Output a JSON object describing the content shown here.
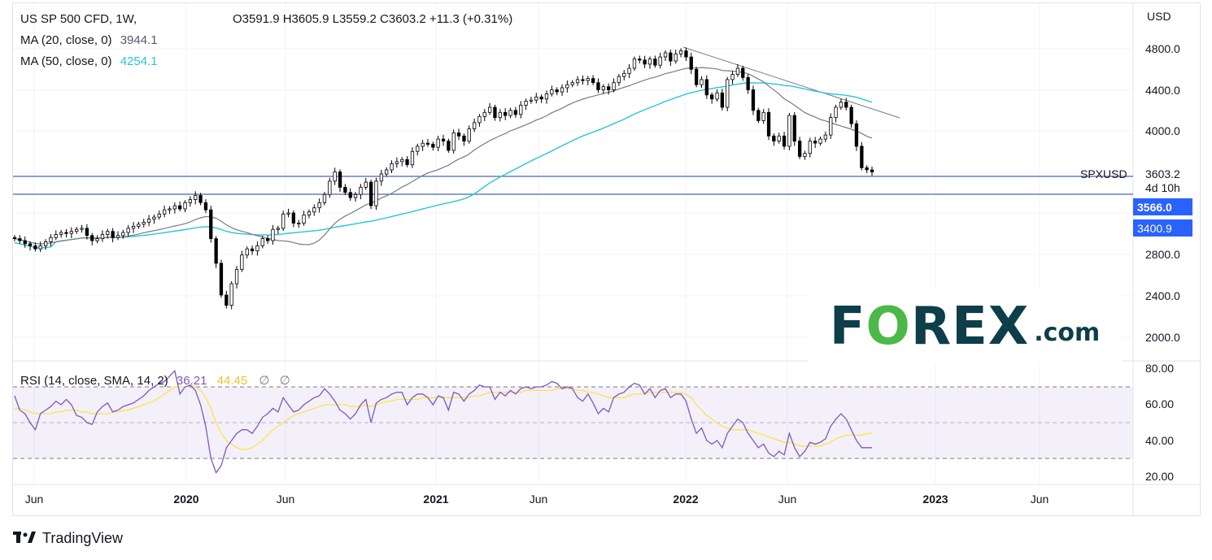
{
  "legend": {
    "symbol_line": "US SP 500 CFD, 1W,",
    "ohlc": {
      "open": "O3591.9",
      "high": "H3605.9",
      "low": "L3559.2",
      "close": "C3603.2",
      "change": "+11.3 (+0.31%)"
    },
    "ma20_label": "MA (20, close, 0)",
    "ma20_value": "3944.1",
    "ma50_label": "MA (50, close, 0)",
    "ma50_value": "4254.1"
  },
  "rsi_legend": {
    "label": "RSI (14, close, SMA, 14, 2)",
    "rsi_value": "36.21",
    "sma_value": "44.45",
    "extra1": "∅",
    "extra2": "∅"
  },
  "axis": {
    "currency": "USD",
    "price_ticks": [
      "4800.0",
      "4400.0",
      "4000.0",
      "2800.0",
      "2400.0",
      "2000.0"
    ],
    "rsi_ticks": [
      "80.00",
      "60.00",
      "40.00",
      "20.00"
    ],
    "time_ticks": [
      "Jun",
      "2020",
      "Jun",
      "2021",
      "Jun",
      "2022",
      "Jun",
      "2023",
      "Jun"
    ]
  },
  "tags": {
    "symbol": "SPXUSD",
    "last_price": "3603.2",
    "countdown": "4d 10h",
    "level1": "3566.0",
    "level2": "3400.9"
  },
  "branding": {
    "watermark_main_a": "F",
    "watermark_main_b": "REX",
    "watermark_o": "O",
    "watermark_suffix": ".com",
    "footer": "TradingView"
  },
  "colors": {
    "up": "#ffffff",
    "down": "#000000",
    "ma20": "#787b86",
    "ma50": "#26c6da",
    "rsi": "#7e57c2",
    "rsi_sma": "#fbe34c",
    "tag_blue": "#2962ff",
    "line_blue": "#1e3f95"
  },
  "chart_data": {
    "type": "candlestick",
    "timeframe": "1W",
    "price_range": [
      1850,
      5000
    ],
    "rsi_range": [
      15,
      85
    ],
    "horizontal_levels": [
      3603.2,
      3566.0
    ],
    "weekly_close": [
      2950,
      2930,
      2900,
      2880,
      2850,
      2880,
      2920,
      2960,
      2990,
      3010,
      3000,
      3020,
      3040,
      3050,
      2980,
      2930,
      2950,
      2990,
      3020,
      2960,
      2980,
      3010,
      3050,
      3070,
      3090,
      3110,
      3140,
      3160,
      3190,
      3230,
      3240,
      3270,
      3240,
      3300,
      3330,
      3370,
      3300,
      3230,
      2950,
      2710,
      2400,
      2300,
      2510,
      2650,
      2790,
      2850,
      2830,
      2880,
      2950,
      2930,
      3040,
      3050,
      3190,
      3200,
      3100,
      3100,
      3180,
      3210,
      3250,
      3300,
      3380,
      3510,
      3600,
      3450,
      3400,
      3350,
      3380,
      3450,
      3500,
      3270,
      3510,
      3580,
      3620,
      3680,
      3700,
      3720,
      3670,
      3800,
      3850,
      3880,
      3870,
      3840,
      3920,
      3900,
      3810,
      3980,
      3950,
      3900,
      4020,
      4080,
      4140,
      4180,
      4230,
      4130,
      4180,
      4150,
      4200,
      4160,
      4250,
      4290,
      4300,
      4330,
      4310,
      4360,
      4400,
      4380,
      4420,
      4450,
      4470,
      4500,
      4490,
      4510,
      4470,
      4400,
      4430,
      4400,
      4470,
      4530,
      4560,
      4610,
      4700,
      4690,
      4650,
      4700,
      4640,
      4720,
      4760,
      4680,
      4750,
      4780,
      4720,
      4600,
      4450,
      4500,
      4350,
      4310,
      4370,
      4230,
      4500,
      4550,
      4610,
      4520,
      4400,
      4200,
      4100,
      4180,
      3950,
      3900,
      3950,
      3850,
      4150,
      3900,
      3750,
      3780,
      3900,
      3880,
      3920,
      3960,
      4130,
      4230,
      4280,
      4230,
      4070,
      3850,
      3640,
      3620,
      3600
    ],
    "rsi": [
      65,
      57,
      55,
      50,
      46,
      55,
      57,
      59,
      62,
      60,
      63,
      60,
      54,
      53,
      50,
      49,
      56,
      59,
      61,
      56,
      57,
      59,
      60,
      61,
      63,
      65,
      68,
      70,
      72,
      73,
      76,
      79,
      66,
      70,
      71,
      68,
      60,
      48,
      30,
      22,
      26,
      36,
      40,
      44,
      46,
      46,
      44,
      48,
      53,
      55,
      58,
      56,
      64,
      60,
      56,
      57,
      60,
      62,
      64,
      65,
      69,
      66,
      62,
      57,
      55,
      52,
      55,
      60,
      63,
      50,
      61,
      63,
      64,
      66,
      67,
      67,
      60,
      64,
      66,
      66,
      64,
      60,
      65,
      64,
      57,
      67,
      66,
      62,
      66,
      68,
      71,
      70,
      70,
      63,
      67,
      65,
      68,
      66,
      69,
      70,
      69,
      70,
      70,
      71,
      73,
      72,
      69,
      70,
      69,
      64,
      62,
      66,
      61,
      55,
      58,
      56,
      64,
      66,
      67,
      70,
      72,
      71,
      66,
      69,
      64,
      68,
      69,
      64,
      66,
      66,
      62,
      52,
      44,
      47,
      40,
      38,
      40,
      36,
      44,
      48,
      52,
      50,
      44,
      40,
      36,
      38,
      33,
      31,
      34,
      32,
      44,
      36,
      31,
      34,
      39,
      38,
      39,
      41,
      48,
      52,
      55,
      52,
      46,
      40,
      36,
      36,
      36
    ],
    "rsi_sma": [
      58,
      58,
      57,
      56,
      55,
      55,
      55,
      55,
      56,
      56,
      57,
      57,
      57,
      56,
      56,
      55,
      55,
      55,
      55,
      56,
      56,
      57,
      57,
      58,
      59,
      60,
      61,
      62,
      64,
      66,
      68,
      70,
      70,
      70,
      71,
      70,
      68,
      64,
      58,
      50,
      44,
      40,
      38,
      36,
      35,
      35,
      36,
      38,
      40,
      43,
      46,
      48,
      50,
      52,
      54,
      55,
      56,
      57,
      58,
      59,
      60,
      60,
      60,
      60,
      60,
      59,
      59,
      59,
      60,
      59,
      60,
      61,
      62,
      62,
      63,
      63,
      63,
      63,
      63,
      64,
      64,
      64,
      64,
      64,
      64,
      64,
      64,
      64,
      64,
      65,
      65,
      66,
      67,
      67,
      67,
      67,
      67,
      67,
      67,
      68,
      68,
      68,
      68,
      68,
      68,
      69,
      69,
      69,
      69,
      68,
      68,
      67,
      67,
      66,
      65,
      64,
      64,
      64,
      64,
      65,
      66,
      66,
      66,
      67,
      67,
      67,
      67,
      67,
      67,
      67,
      66,
      64,
      60,
      57,
      54,
      52,
      50,
      48,
      47,
      46,
      46,
      46,
      46,
      45,
      44,
      43,
      42,
      41,
      40,
      39,
      39,
      38,
      37,
      37,
      37,
      37,
      37,
      38,
      39,
      41,
      42,
      43,
      43,
      43,
      43,
      44,
      44
    ]
  }
}
